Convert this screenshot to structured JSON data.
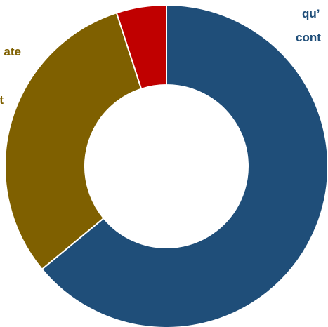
{
  "chart_data": {
    "type": "pie",
    "variant": "donut",
    "slices": [
      {
        "value": 64,
        "color": "#1F4E79"
      },
      {
        "value": 31,
        "color": "#7F6000"
      },
      {
        "value": 5,
        "color": "#C00000"
      }
    ],
    "labels": [
      {
        "text": "qu’",
        "color": "#1F4E79"
      },
      {
        "text": "cont",
        "color": "#1F4E79"
      },
      {
        "text": "ate",
        "color": "#7F6000"
      },
      {
        "text": "t",
        "color": "#7F6000"
      }
    ]
  }
}
